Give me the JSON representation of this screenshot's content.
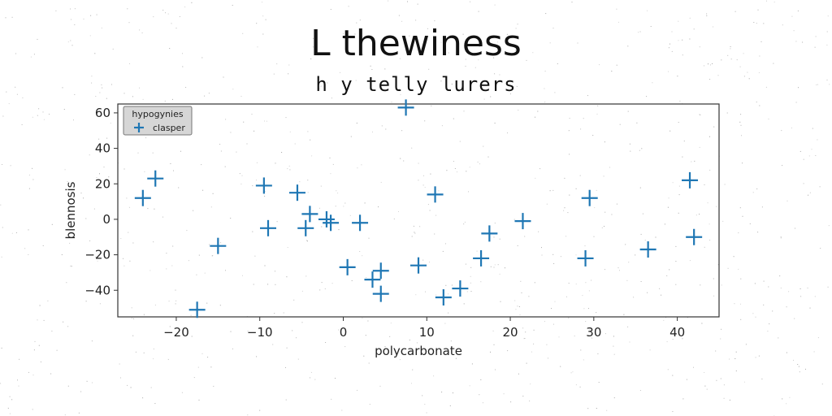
{
  "chart_data": {
    "type": "scatter",
    "title": "L thewiness",
    "subtitle": "h y telly lurers",
    "xlabel": "polycarbonate",
    "ylabel": "blennosis",
    "xlim": [
      -27,
      45
    ],
    "ylim": [
      -55,
      65
    ],
    "xticks": [
      -20,
      -10,
      0,
      10,
      20,
      30,
      40
    ],
    "yticks": [
      -40,
      -20,
      0,
      20,
      40,
      60
    ],
    "marker": "plus",
    "color": "#1f77b4",
    "legend": {
      "title": "hypogynies",
      "placement": "top-left"
    },
    "series": [
      {
        "name": "clasper",
        "x": [
          -24,
          -22.5,
          -17.5,
          -15,
          -9.5,
          -9,
          -5.5,
          -4,
          -4.5,
          -2,
          -1.5,
          2,
          0.5,
          3.5,
          4.5,
          4.5,
          7.5,
          9,
          11,
          12,
          14,
          16.5,
          17.5,
          21.5,
          29,
          29.5,
          36.5,
          41.5,
          42
        ],
        "y": [
          12,
          23,
          -51,
          -15,
          19,
          -5,
          15,
          3,
          -5,
          0,
          -2,
          -2,
          -27,
          -34,
          -29,
          -42,
          63,
          -26,
          14,
          -44,
          -39,
          -22,
          -8,
          -1,
          -22,
          12,
          -17,
          22,
          -10
        ]
      }
    ]
  }
}
